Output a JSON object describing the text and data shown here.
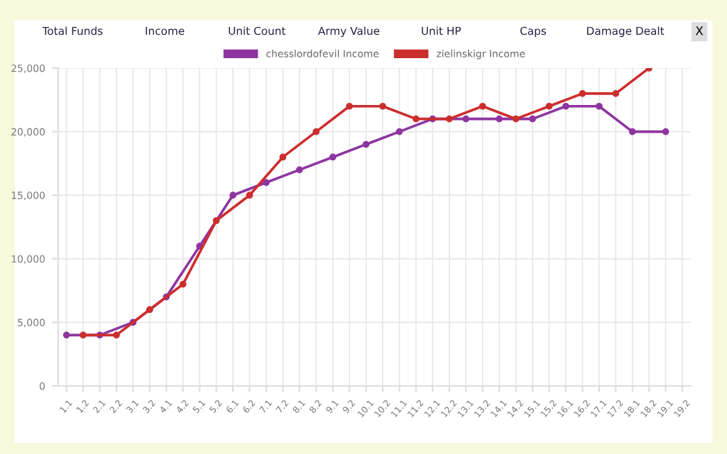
{
  "chart_data": {
    "type": "line",
    "annotations": [
      "Total Funds",
      "Income",
      "Unit Count",
      "Army Value",
      "Unit HP",
      "Caps",
      "Damage Dealt",
      "X"
    ],
    "categories": [
      "1.1",
      "1.2",
      "2.1",
      "2.2",
      "3.1",
      "3.2",
      "4.1",
      "4.2",
      "5.1",
      "5.2",
      "6.1",
      "6.2",
      "7.1",
      "7.2",
      "8.1",
      "8.2",
      "9.1",
      "9.2",
      "10.1",
      "10.2",
      "11.1",
      "11.2",
      "12.1",
      "12.2",
      "13.1",
      "13.2",
      "14.1",
      "14.2",
      "15.1",
      "15.2",
      "16.1",
      "16.2",
      "17.1",
      "17.2",
      "18.1",
      "18.2",
      "19.1",
      "19.2"
    ],
    "series": [
      {
        "name": "chesslordofevil Income",
        "color": "#8e35a0",
        "values": [
          4000,
          null,
          4000,
          null,
          5000,
          null,
          7000,
          null,
          11000,
          null,
          15000,
          null,
          16000,
          null,
          17000,
          null,
          18000,
          null,
          19000,
          null,
          20000,
          null,
          21000,
          null,
          21000,
          null,
          21000,
          null,
          21000,
          null,
          22000,
          null,
          22000,
          null,
          20000,
          null,
          20000,
          null
        ]
      },
      {
        "name": "zielinskigr Income",
        "color": "#cc2e2e",
        "values": [
          null,
          4000,
          null,
          4000,
          null,
          6000,
          null,
          8000,
          null,
          13000,
          null,
          15000,
          null,
          18000,
          null,
          20000,
          null,
          22000,
          null,
          22000,
          null,
          21000,
          null,
          21000,
          null,
          22000,
          null,
          21000,
          null,
          22000,
          null,
          23000,
          null,
          23000,
          null,
          25000,
          null,
          null
        ]
      }
    ],
    "ylim": [
      0,
      25000
    ],
    "yticks": [
      {
        "value": 0,
        "label": "0"
      },
      {
        "value": 5000,
        "label": "5,000"
      },
      {
        "value": 10000,
        "label": "10,000"
      },
      {
        "value": 15000,
        "label": "15,000"
      },
      {
        "value": 20000,
        "label": "20,000"
      },
      {
        "value": 25000,
        "label": "25,000"
      }
    ],
    "grid": true,
    "legend": "top",
    "marker": "circle",
    "line_style": "solid"
  }
}
